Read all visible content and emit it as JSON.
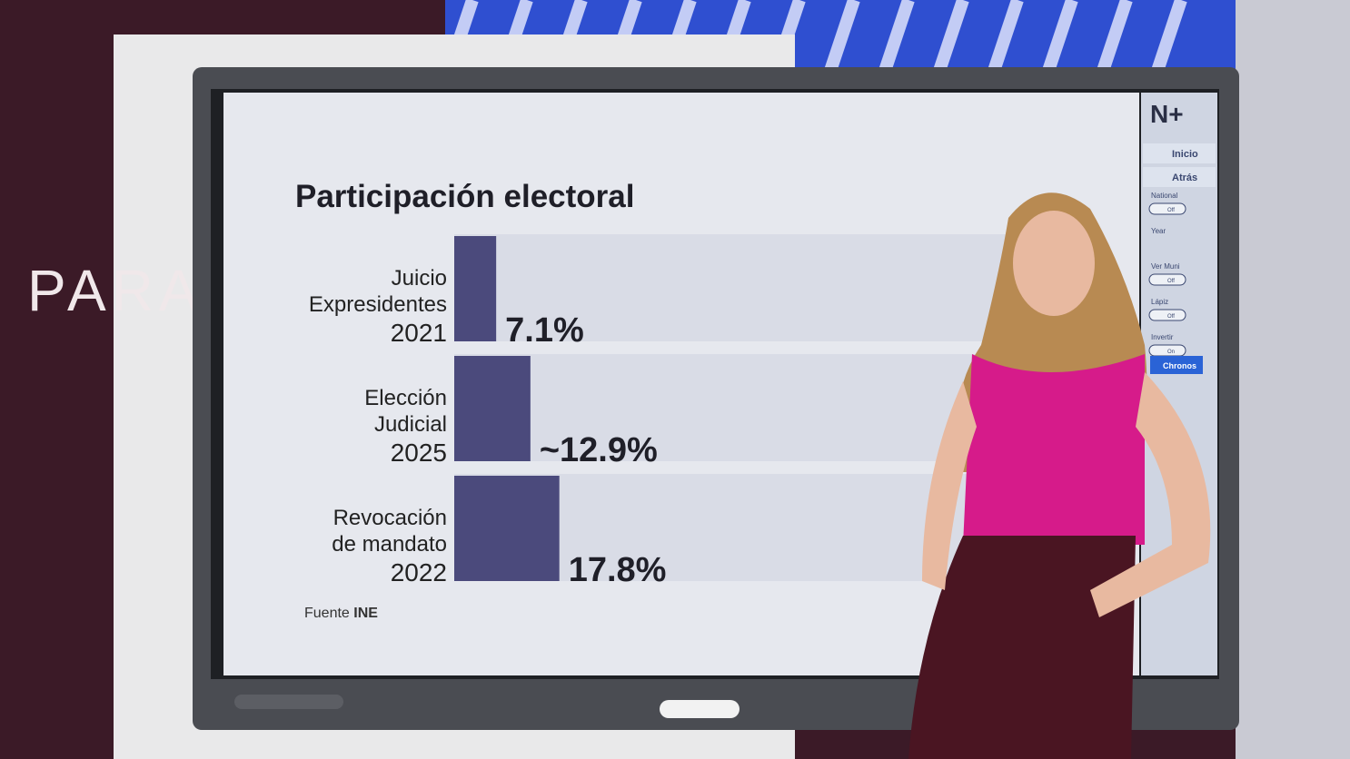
{
  "background_text": "PARA",
  "chart_data": {
    "type": "hbar",
    "title": "Participación electoral",
    "categories": [
      [
        "Juicio",
        "Expresidentes",
        "2021"
      ],
      [
        "Elección",
        "Judicial",
        "2025"
      ],
      [
        "Revocación",
        "de mandato",
        "2022"
      ]
    ],
    "values": [
      7.1,
      12.9,
      17.8
    ],
    "value_labels": [
      "7.1%",
      "~12.9%",
      "17.8%"
    ],
    "color": "#4b4a7c",
    "track_color": "#d9dce6",
    "xlim": [
      0,
      100
    ],
    "source": {
      "label": "Fuente",
      "name": "INE"
    }
  },
  "side_panel": {
    "buttons": [
      "Inicio",
      "Atrás"
    ],
    "toggles": [
      {
        "label": "National",
        "state": "Off"
      },
      {
        "label": "Year",
        "state": null
      },
      {
        "label": "Ver Muni",
        "state": "Off"
      },
      {
        "label": "Lápiz",
        "state": "Off"
      },
      {
        "label": "Invertir",
        "state": "On"
      }
    ],
    "action": "Chronos"
  }
}
